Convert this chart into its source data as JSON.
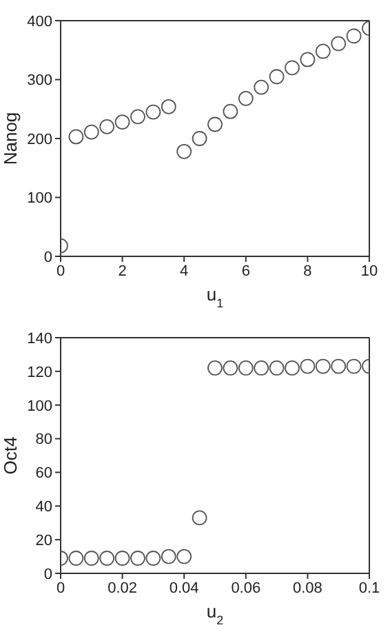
{
  "chart_data": [
    {
      "type": "scatter",
      "xlabel": "u$_{1}$",
      "ylabel": "Nanog",
      "x": [
        0,
        0.5,
        1,
        1.5,
        2,
        2.5,
        3,
        3.5,
        4,
        4.5,
        5,
        5.5,
        6,
        6.5,
        7,
        7.5,
        8,
        8.5,
        9,
        9.5,
        10
      ],
      "series": [
        {
          "color": "#555555",
          "values": [
            18,
            203,
            211,
            220,
            228,
            237,
            245,
            254,
            178,
            200,
            224,
            246,
            268,
            287,
            305,
            320,
            334,
            348,
            361,
            374,
            387
          ]
        }
      ],
      "xlim": [
        0,
        10
      ],
      "xticks": [
        0,
        2,
        4,
        6,
        8,
        10
      ],
      "ylim": [
        0,
        400
      ],
      "yticks": [
        0,
        100,
        200,
        300,
        400
      ],
      "marker": "circle"
    },
    {
      "type": "scatter",
      "xlabel": "u$_{2}$",
      "ylabel": "Oct4",
      "x": [
        0,
        0.005,
        0.01,
        0.015,
        0.02,
        0.025,
        0.03,
        0.035,
        0.04,
        0.045,
        0.05,
        0.055,
        0.06,
        0.065,
        0.07,
        0.075,
        0.08,
        0.085,
        0.09,
        0.095,
        0.1
      ],
      "series": [
        {
          "color": "#555555",
          "values": [
            9,
            9,
            9,
            9,
            9,
            9,
            9,
            10,
            10,
            33,
            122,
            122,
            122,
            122,
            122,
            122,
            123,
            123,
            123,
            123,
            123
          ]
        }
      ],
      "xlim": [
        0,
        0.1
      ],
      "xticks": [
        0,
        0.02,
        0.04,
        0.06,
        0.08,
        0.1
      ],
      "ylim": [
        0,
        140
      ],
      "yticks": [
        0,
        20,
        40,
        60,
        80,
        100,
        120,
        140
      ],
      "marker": "circle"
    }
  ]
}
